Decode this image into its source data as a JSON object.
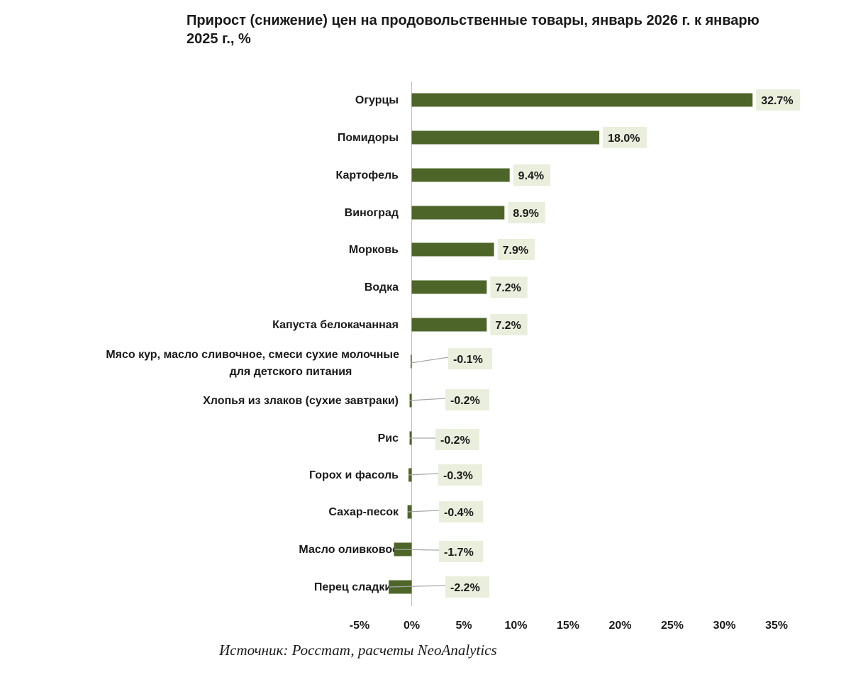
{
  "chart_data": {
    "type": "bar",
    "orientation": "horizontal",
    "title": "Прирост (снижение) цен на продовольственные товары, январь 2026 г. к январю 2025 г., %",
    "xlabel": "",
    "ylabel": "",
    "xlim": [
      -5,
      35
    ],
    "xticks": [
      -5,
      0,
      5,
      10,
      15,
      20,
      25,
      30,
      35
    ],
    "xtick_labels": [
      "-5%",
      "0%",
      "5%",
      "10%",
      "15%",
      "20%",
      "25%",
      "30%",
      "35%"
    ],
    "grid": false,
    "legend": "none",
    "categories": [
      "Огурцы",
      "Помидоры",
      "Картофель",
      "Виноград",
      "Морковь",
      "Водка",
      "Капуста белокачанная",
      "Мясо кур, масло сливочное, смеси сухие молочные для детского питания",
      "Хлопья из злаков (сухие завтраки)",
      "Рис",
      "Горох и фасоль",
      "Сахар-песок",
      "Масло оливковое",
      "Перец сладкий"
    ],
    "values": [
      32.7,
      18.0,
      9.4,
      8.9,
      7.9,
      7.2,
      7.2,
      -0.1,
      -0.2,
      -0.2,
      -0.3,
      -0.4,
      -1.7,
      -2.2
    ],
    "value_labels": [
      "32.7%",
      "18.0%",
      "9.4%",
      "8.9%",
      "7.9%",
      "7.2%",
      "7.2%",
      "-0.1%",
      "-0.2%",
      "-0.2%",
      "-0.3%",
      "-0.4%",
      "-1.7%",
      "-2.2%"
    ],
    "bar_color": "#4e6529",
    "label_bg_color": "#eaeedc",
    "leader_color": "#a6a6a6",
    "axis_color": "#bfbfbf"
  },
  "source": "Источник: Росстат, расчеты NeoAnalytics"
}
